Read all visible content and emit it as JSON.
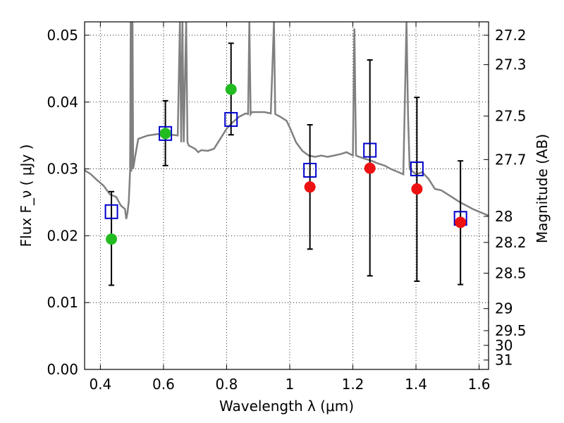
{
  "chart_data": {
    "type": "scatter",
    "title": "",
    "xlabel": "Wavelength  λ (μm)",
    "ylabel": "Flux  F_ν  ( μJy )",
    "y2label": "Magnitude (AB)",
    "xlim": [
      0.35,
      1.63
    ],
    "ylim": [
      0.0,
      0.052
    ],
    "grid": true,
    "x_ticks": [
      0.4,
      0.6,
      0.8,
      1.0,
      1.2,
      1.4,
      1.6
    ],
    "x_tick_labels": [
      "0.4",
      "0.6",
      "0.8",
      "1",
      "1.2",
      "1.4",
      "1.6"
    ],
    "y_ticks": [
      0.0,
      0.01,
      0.02,
      0.03,
      0.04,
      0.05
    ],
    "y_tick_labels": [
      "0.00",
      "0.01",
      "0.02",
      "0.03",
      "0.04",
      "0.05"
    ],
    "y2_ticks": [
      {
        "flux": 0.05,
        "label": "27.2"
      },
      {
        "flux": 0.0456,
        "label": "27.3"
      },
      {
        "flux": 0.0379,
        "label": "27.5"
      },
      {
        "flux": 0.0314,
        "label": "27.7"
      },
      {
        "flux": 0.0229,
        "label": "28"
      },
      {
        "flux": 0.019,
        "label": "28.2"
      },
      {
        "flux": 0.0144,
        "label": "28.5"
      },
      {
        "flux": 0.0091,
        "label": "29"
      },
      {
        "flux": 0.0058,
        "label": "29.5"
      },
      {
        "flux": 0.0036,
        "label": "30"
      },
      {
        "flux": 0.0014,
        "label": "31"
      }
    ],
    "series": [
      {
        "kind": "errorbar",
        "color": "#000000",
        "points": [
          {
            "x": 0.435,
            "low": 0.0126,
            "high": 0.0266
          },
          {
            "x": 0.606,
            "low": 0.0305,
            "high": 0.0402
          },
          {
            "x": 0.814,
            "low": 0.0351,
            "high": 0.0488
          },
          {
            "x": 1.064,
            "low": 0.018,
            "high": 0.0366
          },
          {
            "x": 1.254,
            "low": 0.014,
            "high": 0.0463
          },
          {
            "x": 1.403,
            "low": 0.0132,
            "high": 0.0407
          },
          {
            "x": 1.541,
            "low": 0.0127,
            "high": 0.0312
          }
        ]
      },
      {
        "kind": "open-square",
        "color": "#0000cc",
        "points": [
          {
            "x": 0.435,
            "y": 0.0236
          },
          {
            "x": 0.606,
            "y": 0.0353
          },
          {
            "x": 0.814,
            "y": 0.0374
          },
          {
            "x": 1.064,
            "y": 0.0298
          },
          {
            "x": 1.254,
            "y": 0.0328
          },
          {
            "x": 1.403,
            "y": 0.03
          },
          {
            "x": 1.541,
            "y": 0.0226
          }
        ]
      },
      {
        "kind": "dot",
        "color": "#22bb22",
        "points": [
          {
            "x": 0.435,
            "y": 0.0195
          },
          {
            "x": 0.606,
            "y": 0.0353
          },
          {
            "x": 0.814,
            "y": 0.0419
          }
        ]
      },
      {
        "kind": "dot",
        "color": "#ee1111",
        "points": [
          {
            "x": 1.064,
            "y": 0.0273
          },
          {
            "x": 1.254,
            "y": 0.0301
          },
          {
            "x": 1.403,
            "y": 0.027
          },
          {
            "x": 1.541,
            "y": 0.022
          }
        ]
      },
      {
        "kind": "spectrum-line",
        "color": "#808080",
        "points": [
          [
            0.35,
            0.0298
          ],
          [
            0.37,
            0.0292
          ],
          [
            0.39,
            0.0283
          ],
          [
            0.41,
            0.0275
          ],
          [
            0.43,
            0.0262
          ],
          [
            0.45,
            0.0258
          ],
          [
            0.465,
            0.0245
          ],
          [
            0.478,
            0.024
          ],
          [
            0.482,
            0.0225
          ],
          [
            0.486,
            0.0235
          ],
          [
            0.49,
            0.0252
          ],
          [
            0.494,
            0.0296
          ],
          [
            0.496,
            0.052
          ],
          [
            0.498,
            0.0296
          ],
          [
            0.502,
            0.052
          ],
          [
            0.504,
            0.03
          ],
          [
            0.51,
            0.0318
          ],
          [
            0.52,
            0.0345
          ],
          [
            0.55,
            0.035
          ],
          [
            0.58,
            0.0352
          ],
          [
            0.61,
            0.0352
          ],
          [
            0.645,
            0.035
          ],
          [
            0.652,
            0.052
          ],
          [
            0.656,
            0.034
          ],
          [
            0.66,
            0.052
          ],
          [
            0.664,
            0.034
          ],
          [
            0.672,
            0.052
          ],
          [
            0.676,
            0.034
          ],
          [
            0.68,
            0.0335
          ],
          [
            0.7,
            0.033
          ],
          [
            0.71,
            0.0325
          ],
          [
            0.72,
            0.0328
          ],
          [
            0.74,
            0.0327
          ],
          [
            0.76,
            0.033
          ],
          [
            0.78,
            0.0345
          ],
          [
            0.8,
            0.036
          ],
          [
            0.82,
            0.037
          ],
          [
            0.84,
            0.0378
          ],
          [
            0.86,
            0.0383
          ],
          [
            0.868,
            0.0382
          ],
          [
            0.872,
            0.052
          ],
          [
            0.876,
            0.0382
          ],
          [
            0.88,
            0.0385
          ],
          [
            0.9,
            0.0385
          ],
          [
            0.92,
            0.0385
          ],
          [
            0.94,
            0.0383
          ],
          [
            0.95,
            0.052
          ],
          [
            0.954,
            0.0382
          ],
          [
            0.97,
            0.0378
          ],
          [
            0.99,
            0.0372
          ],
          [
            1.0,
            0.0362
          ],
          [
            1.02,
            0.034
          ],
          [
            1.04,
            0.0327
          ],
          [
            1.06,
            0.032
          ],
          [
            1.08,
            0.0318
          ],
          [
            1.1,
            0.032
          ],
          [
            1.12,
            0.0318
          ],
          [
            1.14,
            0.032
          ],
          [
            1.16,
            0.0322
          ],
          [
            1.18,
            0.0325
          ],
          [
            1.2,
            0.032
          ],
          [
            1.205,
            0.051
          ],
          [
            1.21,
            0.032
          ],
          [
            1.22,
            0.0318
          ],
          [
            1.24,
            0.0315
          ],
          [
            1.26,
            0.0312
          ],
          [
            1.28,
            0.0308
          ],
          [
            1.3,
            0.0305
          ],
          [
            1.32,
            0.03
          ],
          [
            1.34,
            0.0296
          ],
          [
            1.36,
            0.0292
          ],
          [
            1.37,
            0.052
          ],
          [
            1.375,
            0.038
          ],
          [
            1.38,
            0.03
          ],
          [
            1.4,
            0.0292
          ],
          [
            1.42,
            0.0295
          ],
          [
            1.44,
            0.0285
          ],
          [
            1.46,
            0.027
          ],
          [
            1.48,
            0.0268
          ],
          [
            1.5,
            0.0262
          ],
          [
            1.52,
            0.0256
          ],
          [
            1.54,
            0.025
          ],
          [
            1.56,
            0.0245
          ],
          [
            1.58,
            0.024
          ],
          [
            1.6,
            0.0236
          ],
          [
            1.62,
            0.0232
          ],
          [
            1.63,
            0.023
          ]
        ]
      }
    ]
  }
}
